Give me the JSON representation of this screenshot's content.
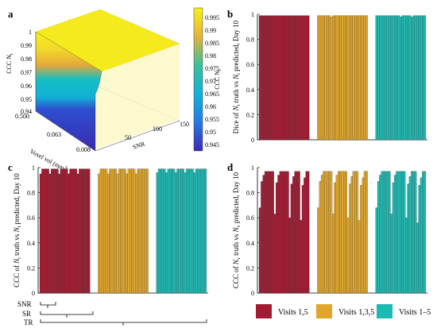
{
  "panel_labels": [
    "a",
    "b",
    "c",
    "d"
  ],
  "colors": {
    "visits_1_5": "#a31b32",
    "visits_1_3_5": "#e0a62c",
    "visits_1_5_all": "#1fb9b3",
    "surface_high": "#f7f11c",
    "surface_low": "#3a2ab1"
  },
  "legend": {
    "items": [
      {
        "label": "Visits 1,5",
        "color": "#a31b32"
      },
      {
        "label": "Visits 1,3,5",
        "color": "#e0a62c"
      },
      {
        "label": "Visits 1–5",
        "color": "#1fb9b3"
      }
    ]
  },
  "brackets": {
    "labels": [
      "SNR",
      "SR",
      "TR"
    ]
  },
  "chart_data": [
    {
      "panel": "a",
      "type": "surface",
      "zlabel": "CCC  N",
      "zlabel_sub": "t",
      "xlabel": "Voxel vol (mm",
      "xlabel_sup": "3",
      "xlabel_end": ")",
      "ylabel": "SNR",
      "zlim": [
        0.94,
        1
      ],
      "z_ticks": [
        "0.94",
        "0.95",
        "0.96",
        "0.97",
        "0.98",
        "0.99",
        "1"
      ],
      "x_ticks": [
        "0.500",
        "0.063",
        "0.008"
      ],
      "y_ticks": [
        "50",
        "100",
        "150"
      ],
      "colorbar": {
        "label": "CCC  N",
        "label_sub": "t",
        "range": [
          0.94,
          0.997
        ],
        "ticks": [
          "0.945",
          "0.95",
          "0.955",
          "0.96",
          "0.965",
          "0.97",
          "0.975",
          "0.98",
          "0.985",
          "0.99",
          "0.995"
        ]
      }
    },
    {
      "panel": "b",
      "type": "bar",
      "ylabel_parts": [
        "Dice of  ",
        "N",
        "t",
        " truth vs  ",
        "N",
        "t",
        " predicted, Day 10"
      ],
      "ylim": [
        0,
        1
      ],
      "y_ticks": [
        "0",
        "0.2",
        "0.4",
        "0.6",
        "0.8",
        "1"
      ],
      "series": [
        {
          "name": "Visits 1,5",
          "values": [
            0.99,
            0.99,
            0.99,
            0.99,
            0.99,
            0.99,
            0.99,
            0.99,
            0.99,
            0.99,
            0.99,
            0.99,
            0.99,
            0.99,
            0.99,
            0.99,
            0.99,
            0.99,
            0.99,
            0.99,
            0.99,
            0.99,
            0.99,
            0.99,
            0.99,
            0.99,
            0.99
          ]
        },
        {
          "name": "Visits 1,3,5",
          "values": [
            0.99,
            0.99,
            0.99,
            0.99,
            0.99,
            0.99,
            0.99,
            0.98,
            0.99,
            0.99,
            0.99,
            0.99,
            0.99,
            0.99,
            0.99,
            0.99,
            0.99,
            0.99,
            0.99,
            0.99,
            0.99,
            0.99,
            0.99,
            0.99,
            0.99,
            0.99,
            0.99
          ]
        },
        {
          "name": "Visits 1–5",
          "values": [
            0.99,
            0.99,
            0.99,
            0.99,
            0.99,
            0.99,
            0.99,
            0.99,
            0.99,
            0.99,
            0.99,
            0.99,
            0.99,
            0.98,
            0.99,
            0.99,
            0.99,
            0.99,
            0.99,
            0.98,
            0.99,
            0.99,
            0.99,
            0.99,
            0.99,
            0.99,
            0.99
          ]
        }
      ]
    },
    {
      "panel": "c",
      "type": "bar",
      "ylabel_parts": [
        "CCC of  ",
        "N",
        "t",
        " truth vs  ",
        "N",
        "t",
        " predicted, Day 10"
      ],
      "ylim": [
        0,
        1
      ],
      "y_ticks": [
        "0",
        "0.2",
        "0.4",
        "0.6",
        "0.8",
        "1"
      ],
      "series": [
        {
          "name": "Visits 1,5",
          "values": [
            0.95,
            0.99,
            0.99,
            0.99,
            0.99,
            0.95,
            0.99,
            0.99,
            0.99,
            0.99,
            0.95,
            0.99,
            0.99,
            0.99,
            0.99,
            0.95,
            0.99,
            0.99,
            0.99,
            0.99,
            0.95,
            0.99,
            0.99,
            0.99,
            0.99,
            0.99,
            0.99
          ]
        },
        {
          "name": "Visits 1,3,5",
          "values": [
            0.95,
            0.99,
            0.99,
            0.99,
            0.99,
            0.95,
            0.99,
            0.99,
            0.99,
            0.99,
            0.95,
            0.99,
            0.99,
            0.99,
            0.99,
            0.95,
            0.99,
            0.99,
            0.99,
            0.99,
            0.95,
            0.99,
            0.99,
            0.99,
            0.99,
            0.99,
            0.99
          ]
        },
        {
          "name": "Visits 1–5",
          "values": [
            0.96,
            0.99,
            0.99,
            0.99,
            0.99,
            0.96,
            0.99,
            0.99,
            0.99,
            0.99,
            0.96,
            0.99,
            0.99,
            0.99,
            0.99,
            0.96,
            0.99,
            0.99,
            0.99,
            0.99,
            0.96,
            0.99,
            0.99,
            0.99,
            0.99,
            0.99,
            0.99
          ]
        }
      ]
    },
    {
      "panel": "d",
      "type": "bar",
      "ylabel_parts": [
        "CCC of  ",
        "N",
        "v",
        " truth vs  ",
        "N",
        "v",
        " predicted, Day 10"
      ],
      "ylim": [
        0,
        1
      ],
      "y_ticks": [
        "0",
        "0.2",
        "0.4",
        "0.6",
        "0.8",
        "1"
      ],
      "series": [
        {
          "name": "Visits 1,5",
          "values": [
            0.68,
            0.89,
            0.94,
            0.97,
            0.97,
            0.97,
            0.97,
            0.97,
            0.63,
            0.88,
            0.94,
            0.97,
            0.97,
            0.97,
            0.97,
            0.97,
            0.6,
            0.87,
            0.93,
            0.97,
            0.97,
            0.97,
            0.58,
            0.86,
            0.92,
            0.97,
            0.97
          ]
        },
        {
          "name": "Visits 1,3,5",
          "values": [
            0.68,
            0.89,
            0.94,
            0.97,
            0.97,
            0.97,
            0.97,
            0.97,
            0.63,
            0.88,
            0.94,
            0.97,
            0.97,
            0.97,
            0.97,
            0.97,
            0.6,
            0.87,
            0.93,
            0.97,
            0.97,
            0.97,
            0.58,
            0.86,
            0.92,
            0.97,
            0.97
          ]
        },
        {
          "name": "Visits 1–5",
          "values": [
            0.68,
            0.89,
            0.94,
            0.97,
            0.97,
            0.97,
            0.97,
            0.97,
            0.63,
            0.88,
            0.94,
            0.97,
            0.97,
            0.97,
            0.97,
            0.97,
            0.6,
            0.87,
            0.93,
            0.97,
            0.97,
            0.97,
            0.56,
            0.86,
            0.92,
            0.97,
            0.97
          ]
        }
      ]
    }
  ]
}
